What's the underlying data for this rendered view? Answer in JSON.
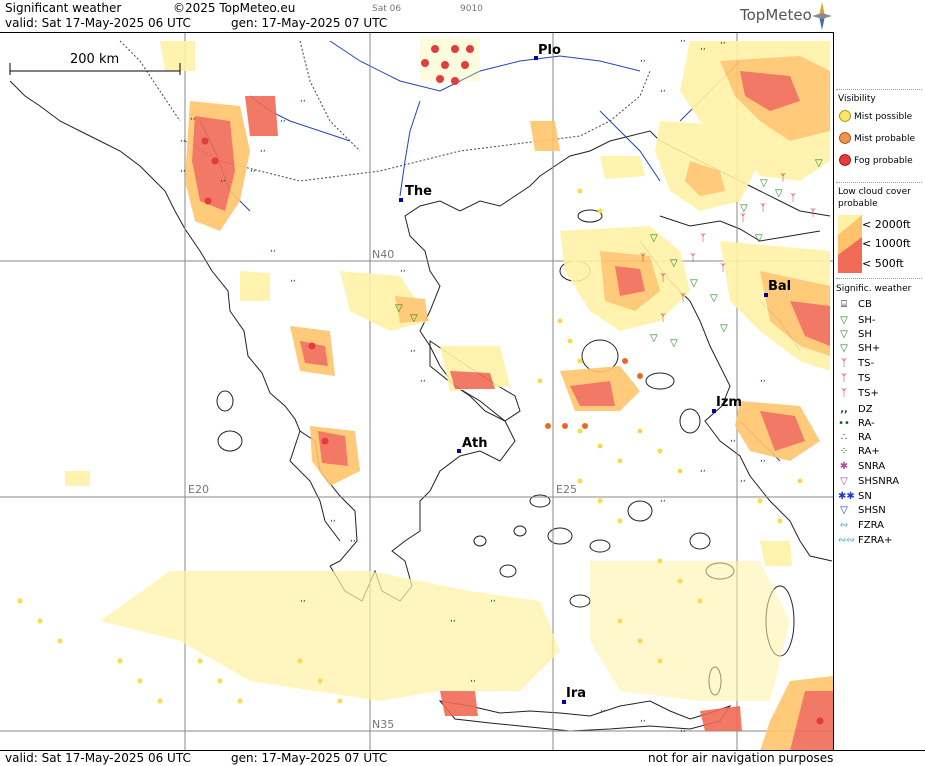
{
  "header": {
    "title": "Significant weather",
    "copyright": "©2025 TopMeteo.eu",
    "valid": "valid:  Sat  17-May-2025  06 UTC",
    "gen": "gen: 17-May-2025 07 UTC",
    "small_sat": "Sat 06",
    "small_code": "9010",
    "logo": "TopMeteo"
  },
  "footer": {
    "valid": "valid:  Sat  17-May-2025  06 UTC",
    "gen": "gen: 17-May-2025 07 UTC",
    "disclaimer": "not for air navigation purposes"
  },
  "scale": {
    "label": "200 km"
  },
  "grid_labels": {
    "n40": "N40",
    "n35": "N35",
    "e20": "E20",
    "e25": "E25"
  },
  "cities": {
    "plo": "Plo",
    "the": "The",
    "bal": "Bal",
    "izm": "Izm",
    "ath": "Ath",
    "ira": "Ira"
  },
  "legend": {
    "visibility": {
      "title": "Visibility",
      "items": [
        "Mist possible",
        "Mist probable",
        "Fog probable"
      ]
    },
    "low_cloud": {
      "title1": "Low cloud cover",
      "title2": "probable",
      "items": [
        "< 2000ft",
        "< 1000ft",
        "<   500ft"
      ]
    },
    "signif": {
      "title": "Signific. weather",
      "items": [
        "CB",
        "SH-",
        "SH",
        "SH+",
        "TS-",
        "TS",
        "TS+",
        "DZ",
        "RA-",
        "RA",
        "RA+",
        "SNRA",
        "SHSNRA",
        "SN",
        "SHSN",
        "FZRA",
        "FZRA+"
      ],
      "icons": [
        "cb-icon",
        "shower-light-icon",
        "shower-icon",
        "shower-heavy-icon",
        "thunderstorm-light-icon",
        "thunderstorm-icon",
        "thunderstorm-heavy-icon",
        "drizzle-icon",
        "rain-light-icon",
        "rain-icon",
        "rain-heavy-icon",
        "snow-rain-icon",
        "snow-rain-shower-icon",
        "snow-icon",
        "snow-shower-icon",
        "freezing-rain-icon",
        "freezing-rain-heavy-icon"
      ]
    }
  },
  "colors": {
    "cloud_2000": "#fff2a6",
    "cloud_1000": "#ffc46b",
    "cloud_500": "#f06a55",
    "fog": "#e23c3c",
    "grid": "#888888",
    "coast": "#222222",
    "river": "#2244bb"
  }
}
